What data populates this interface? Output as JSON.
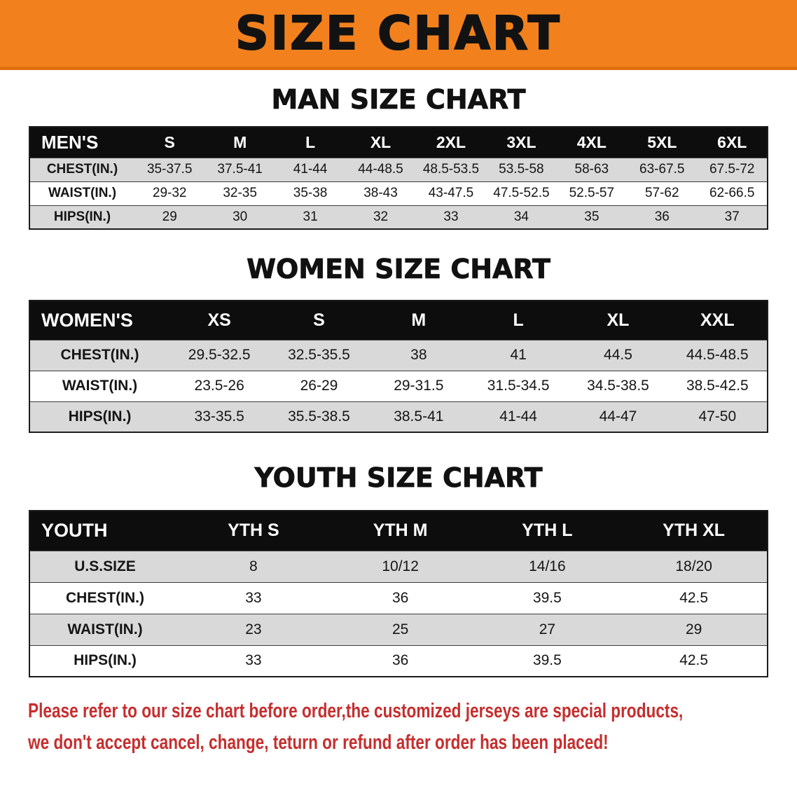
{
  "banner": {
    "title": "SIZE CHART"
  },
  "colors": {
    "banner_bg": "#F2811D",
    "header_bg": "#0D0D0D",
    "row_alt": "#D9D9D9",
    "footer_red": "#C62E2E"
  },
  "sections": [
    {
      "title": "MAN SIZE CHART",
      "group_label": "MEN'S",
      "columns": [
        "S",
        "M",
        "L",
        "XL",
        "2XL",
        "3XL",
        "4XL",
        "5XL",
        "6XL"
      ],
      "rows": [
        {
          "label": "CHEST(IN.)",
          "values": [
            "35-37.5",
            "37.5-41",
            "41-44",
            "44-48.5",
            "48.5-53.5",
            "53.5-58",
            "58-63",
            "63-67.5",
            "67.5-72"
          ]
        },
        {
          "label": "WAIST(IN.)",
          "values": [
            "29-32",
            "32-35",
            "35-38",
            "38-43",
            "43-47.5",
            "47.5-52.5",
            "52.5-57",
            "57-62",
            "62-66.5"
          ]
        },
        {
          "label": "HIPS(IN.)",
          "values": [
            "29",
            "30",
            "31",
            "32",
            "33",
            "34",
            "35",
            "36",
            "37"
          ]
        }
      ]
    },
    {
      "title": "WOMEN SIZE CHART",
      "group_label": "WOMEN'S",
      "columns": [
        "XS",
        "S",
        "M",
        "L",
        "XL",
        "XXL"
      ],
      "rows": [
        {
          "label": "CHEST(IN.)",
          "values": [
            "29.5-32.5",
            "32.5-35.5",
            "38",
            "41",
            "44.5",
            "44.5-48.5"
          ]
        },
        {
          "label": "WAIST(IN.)",
          "values": [
            "23.5-26",
            "26-29",
            "29-31.5",
            "31.5-34.5",
            "34.5-38.5",
            "38.5-42.5"
          ]
        },
        {
          "label": "HIPS(IN.)",
          "values": [
            "33-35.5",
            "35.5-38.5",
            "38.5-41",
            "41-44",
            "44-47",
            "47-50"
          ]
        }
      ]
    },
    {
      "title": "YOUTH SIZE CHART",
      "group_label": "YOUTH",
      "columns": [
        "YTH S",
        "YTH M",
        "YTH L",
        "YTH XL"
      ],
      "rows": [
        {
          "label": "U.S.SIZE",
          "values": [
            "8",
            "10/12",
            "14/16",
            "18/20"
          ]
        },
        {
          "label": "CHEST(IN.)",
          "values": [
            "33",
            "36",
            "39.5",
            "42.5"
          ]
        },
        {
          "label": "WAIST(IN.)",
          "values": [
            "23",
            "25",
            "27",
            "29"
          ]
        },
        {
          "label": "HIPS(IN.)",
          "values": [
            "33",
            "36",
            "39.5",
            "42.5"
          ]
        }
      ]
    }
  ],
  "footer": {
    "lines": [
      "Please refer to our size chart before order,the customized jerseys are special products,",
      "we don't accept cancel, change, teturn or refund after order has been placed!"
    ]
  }
}
